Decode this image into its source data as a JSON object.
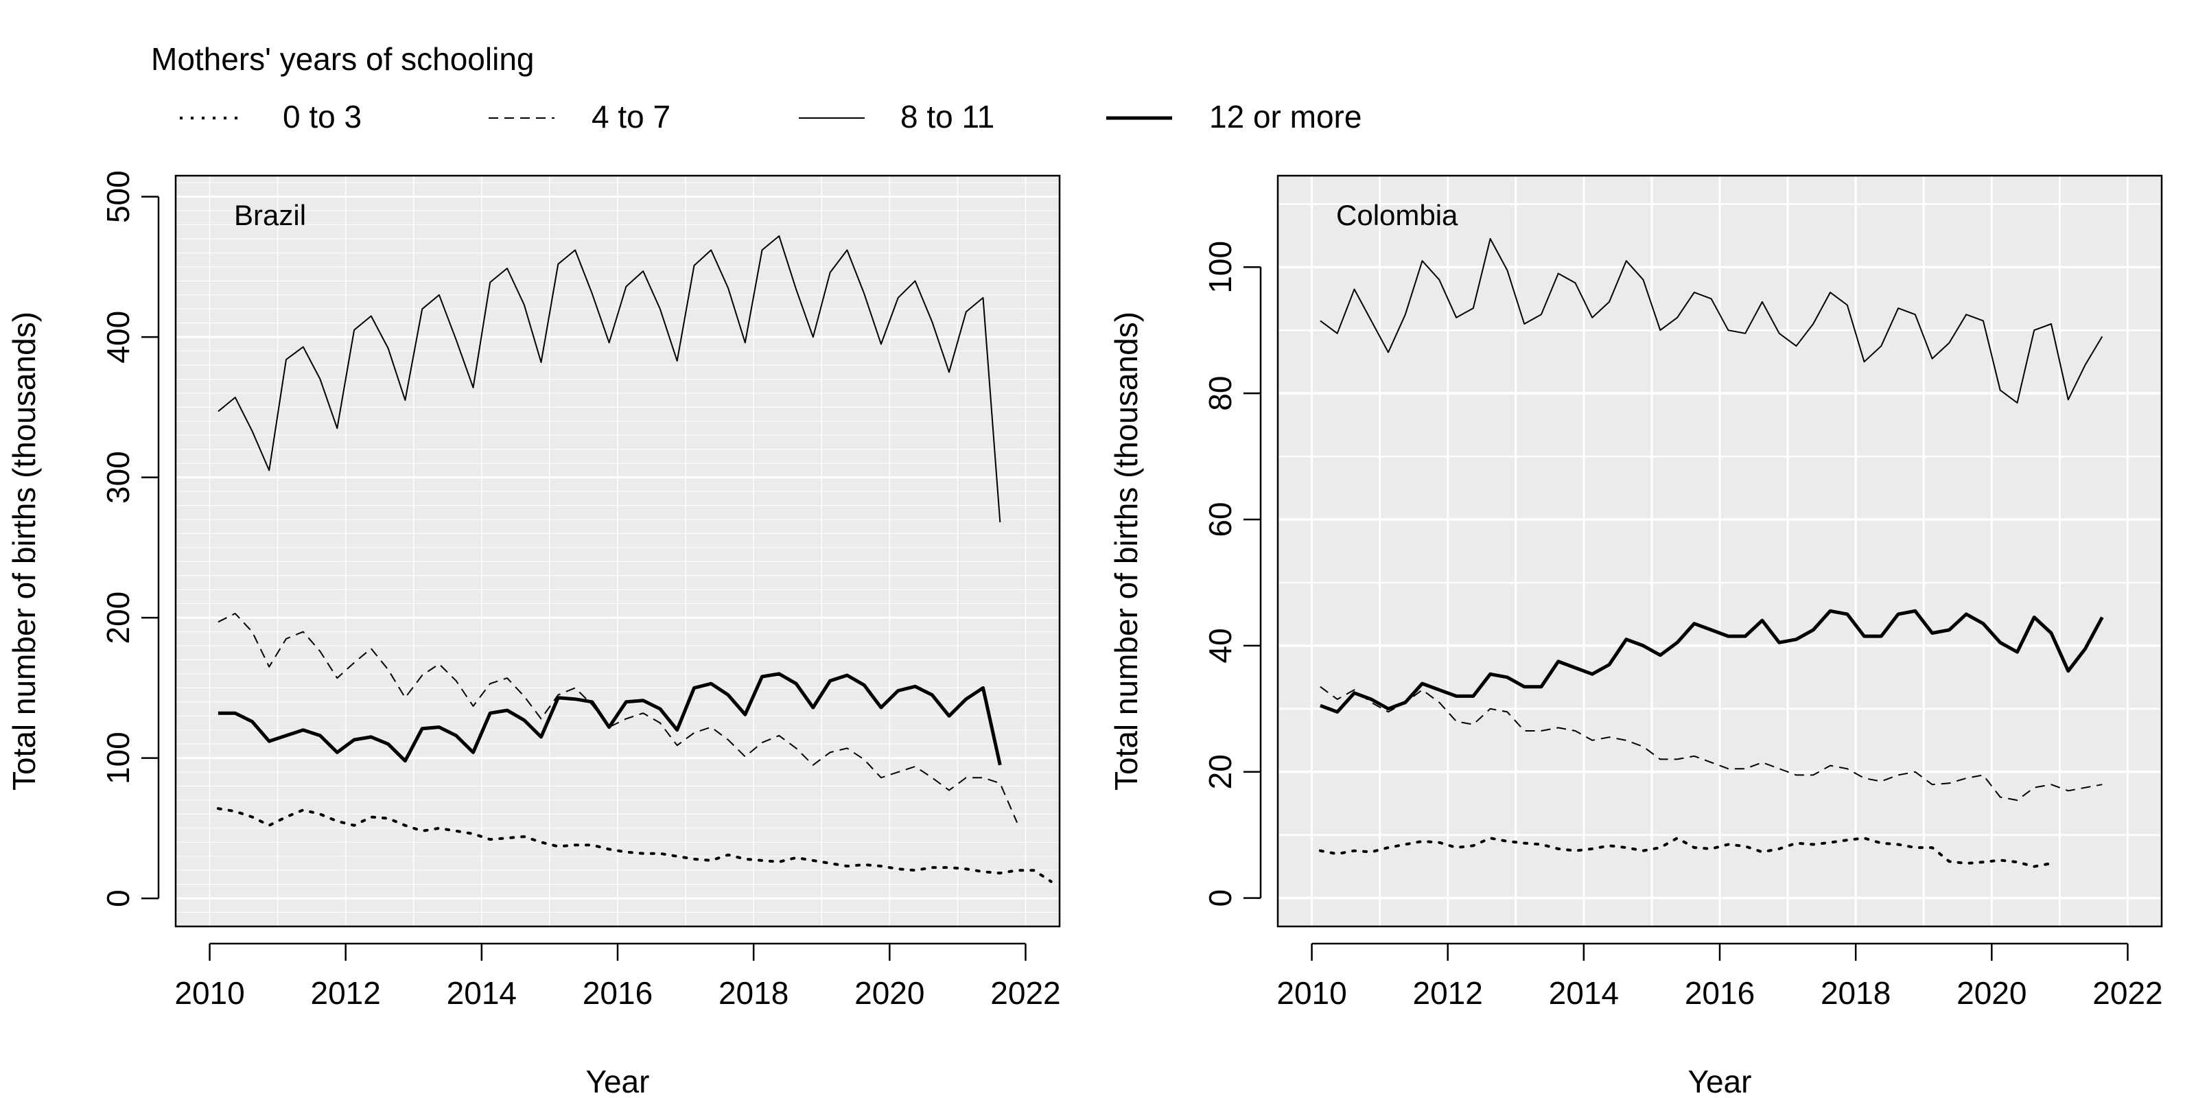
{
  "legend": {
    "title": "Mothers' years of schooling",
    "entries": [
      {
        "label": "0 to 3",
        "style": "dotted"
      },
      {
        "label": "4 to 7",
        "style": "dashed"
      },
      {
        "label": "8 to 11",
        "style": "thin"
      },
      {
        "label": "12 or more",
        "style": "thick"
      }
    ]
  },
  "colors": {
    "panel_bg": "#ebebeb",
    "grid": "#ffffff",
    "line": "#000000"
  },
  "chart_data": [
    {
      "type": "line",
      "panel_label": "Brazil",
      "xlabel": "Year",
      "ylabel": "Total number of births (thousands)",
      "xlim": [
        2009.5,
        2022.5
      ],
      "ylim": [
        -20,
        515
      ],
      "xticks": [
        2010,
        2012,
        2014,
        2016,
        2018,
        2020,
        2022
      ],
      "yticks": [
        0,
        100,
        200,
        300,
        400,
        500
      ],
      "grid": "minor horizontal every 10, vertical every 1",
      "x_start": 2010.125,
      "x_step": 0.25,
      "series": [
        {
          "name": "0 to 3",
          "values": [
            64,
            62,
            58,
            52,
            58,
            63,
            60,
            55,
            52,
            58,
            57,
            52,
            48,
            50,
            48,
            46,
            42,
            43,
            44,
            40,
            37,
            38,
            38,
            35,
            33,
            32,
            32,
            30,
            28,
            27,
            31,
            28,
            27,
            26,
            29,
            27,
            25,
            23,
            24,
            23,
            21,
            20,
            22,
            22,
            21,
            19,
            18,
            20,
            20,
            12
          ]
        },
        {
          "name": "4 to 7",
          "values": [
            197,
            203,
            190,
            165,
            185,
            190,
            176,
            157,
            168,
            178,
            163,
            143,
            159,
            167,
            155,
            137,
            153,
            157,
            144,
            128,
            145,
            150,
            138,
            122,
            128,
            132,
            125,
            109,
            118,
            122,
            113,
            101,
            111,
            116,
            107,
            95,
            104,
            107,
            99,
            86,
            90,
            94,
            86,
            77,
            86,
            86,
            82,
            54
          ]
        },
        {
          "name": "8 to 11",
          "values": [
            347,
            357,
            333,
            305,
            384,
            393,
            370,
            335,
            405,
            415,
            392,
            355,
            420,
            430,
            398,
            364,
            439,
            449,
            423,
            382,
            452,
            462,
            431,
            396,
            436,
            447,
            420,
            383,
            451,
            462,
            435,
            396,
            462,
            472,
            434,
            400,
            446,
            462,
            431,
            395,
            428,
            440,
            411,
            375,
            418,
            428,
            268
          ]
        },
        {
          "name": "12 or more",
          "values": [
            132,
            132,
            126,
            112,
            116,
            120,
            116,
            104,
            113,
            115,
            110,
            98,
            121,
            122,
            116,
            104,
            132,
            134,
            127,
            115,
            143,
            142,
            140,
            122,
            140,
            141,
            135,
            120,
            150,
            153,
            145,
            131,
            158,
            160,
            153,
            136,
            155,
            159,
            152,
            136,
            148,
            151,
            145,
            130,
            142,
            150,
            95
          ]
        }
      ]
    },
    {
      "type": "line",
      "panel_label": "Colombia",
      "xlabel": "Year",
      "ylabel": "Total number of births (thousands)",
      "xlim": [
        2009.5,
        2022.5
      ],
      "ylim": [
        -4.5,
        114.5
      ],
      "xticks": [
        2010,
        2012,
        2014,
        2016,
        2018,
        2020,
        2022
      ],
      "yticks": [
        0,
        20,
        40,
        60,
        80,
        100
      ],
      "grid": "horizontal every 10, vertical every 1",
      "x_start": 2010.125,
      "x_step": 0.25,
      "series": [
        {
          "name": "0 to 3",
          "values": [
            7.5,
            7.0,
            7.5,
            7.3,
            8.0,
            8.5,
            9.0,
            8.8,
            8.0,
            8.3,
            9.5,
            9.0,
            8.7,
            8.5,
            7.8,
            7.5,
            7.8,
            8.3,
            8.0,
            7.5,
            8.0,
            9.5,
            8.0,
            7.8,
            8.5,
            8.2,
            7.3,
            7.8,
            8.7,
            8.5,
            8.8,
            9.2,
            9.5,
            8.7,
            8.5,
            8.0,
            8.0,
            5.8,
            5.5,
            5.7,
            6.0,
            5.7,
            5.0,
            5.5
          ]
        },
        {
          "name": "4 to 7",
          "values": [
            33.5,
            31.5,
            33.0,
            31.0,
            29.5,
            31.0,
            33.0,
            31.0,
            28.0,
            27.5,
            30.0,
            29.5,
            26.5,
            26.5,
            27.0,
            26.5,
            25.0,
            25.5,
            25.0,
            24.0,
            22.0,
            22.0,
            22.5,
            21.5,
            20.5,
            20.5,
            21.5,
            20.5,
            19.5,
            19.5,
            21.0,
            20.5,
            19.0,
            18.5,
            19.5,
            20.0,
            18.0,
            18.2,
            19.0,
            19.5,
            16.0,
            15.5,
            17.5,
            18.0,
            17.0,
            17.5,
            18.0
          ]
        },
        {
          "name": "8 to 11",
          "values": [
            91.5,
            89.5,
            96.5,
            91.5,
            86.5,
            92.5,
            101.0,
            98.0,
            92.0,
            93.5,
            104.5,
            99.5,
            91.0,
            92.5,
            99.0,
            97.5,
            92.0,
            94.5,
            101.0,
            98.0,
            90.0,
            92.0,
            96.0,
            95.0,
            90.0,
            89.5,
            94.5,
            89.5,
            87.5,
            91.0,
            96.0,
            94.0,
            85.0,
            87.5,
            93.5,
            92.5,
            85.5,
            88.0,
            92.5,
            91.5,
            80.5,
            78.5,
            90.0,
            91.0,
            79.0,
            84.5,
            89.0
          ]
        },
        {
          "name": "12 or more",
          "values": [
            30.5,
            29.5,
            32.5,
            31.5,
            30.0,
            31.0,
            34.0,
            33.0,
            32.0,
            32.0,
            35.5,
            35.0,
            33.5,
            33.5,
            37.5,
            36.5,
            35.5,
            37.0,
            41.0,
            40.0,
            38.5,
            40.5,
            43.5,
            42.5,
            41.5,
            41.5,
            44.0,
            40.5,
            41.0,
            42.5,
            45.5,
            45.0,
            41.5,
            41.5,
            45.0,
            45.5,
            42.0,
            42.5,
            45.0,
            43.5,
            40.5,
            39.0,
            44.5,
            42.0,
            36.0,
            39.5,
            44.5
          ]
        }
      ]
    }
  ]
}
